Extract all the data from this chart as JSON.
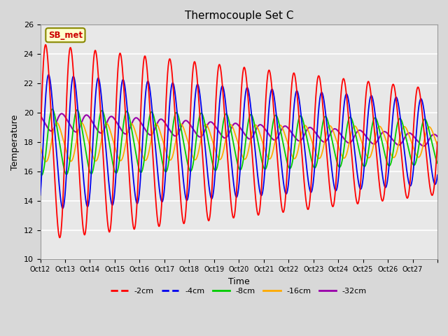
{
  "title": "Thermocouple Set C",
  "xlabel": "Time",
  "ylabel": "Temperature",
  "ylim": [
    10,
    26
  ],
  "background_color": "#e8e8e8",
  "plot_bg_color": "#e8e8e8",
  "grid_color": "#ffffff",
  "x_tick_labels": [
    "Oct 12",
    "Oct 13",
    "Oct 14",
    "Oct 15",
    "Oct 16",
    "Oct 17",
    "Oct 18",
    "Oct 19",
    "Oct 20",
    "Oct 21",
    "Oct 22",
    "Oct 23",
    "Oct 24",
    "Oct 25",
    "Oct 26",
    "Oct 27"
  ],
  "legend_entries": [
    "-2cm",
    "-4cm",
    "-8cm",
    "-16cm",
    "-32cm"
  ],
  "legend_colors": [
    "#ff0000",
    "#0000ee",
    "#00cc00",
    "#ffaa00",
    "#9900aa"
  ],
  "annotation_text": "SB_met",
  "annotation_color": "#cc0000",
  "annotation_bg": "#ffffcc",
  "annotation_border": "#888800",
  "n_days": 16,
  "amplitudes_start": [
    6.5,
    4.5,
    2.2,
    1.3,
    0.6
  ],
  "amplitudes_end": [
    3.5,
    2.8,
    1.5,
    1.0,
    0.4
  ],
  "phase_shifts": [
    0.0,
    0.12,
    0.27,
    0.45,
    0.65
  ],
  "mean_start": [
    18.0,
    18.0,
    18.0,
    18.0,
    19.4
  ],
  "mean_end": [
    18.0,
    18.0,
    18.0,
    18.0,
    18.1
  ],
  "linewidths": [
    1.3,
    1.3,
    1.3,
    1.3,
    1.5
  ]
}
